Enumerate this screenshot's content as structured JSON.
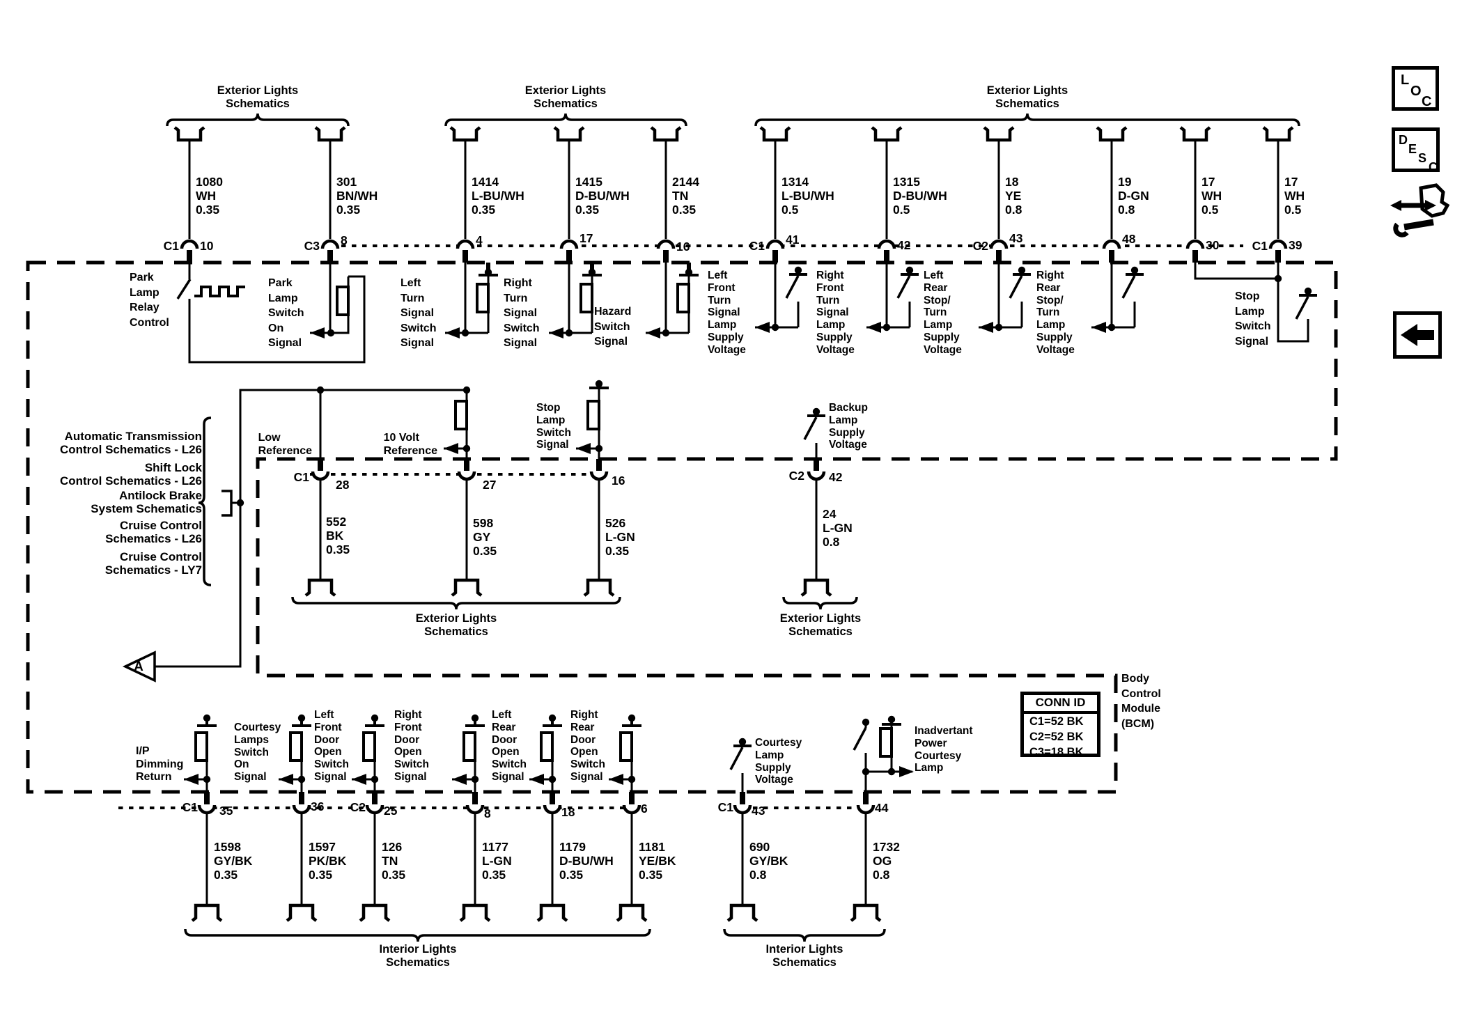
{
  "module": {
    "name_label": "Body\nControl\nModule\n(BCM)",
    "conn_id": {
      "title": "CONN ID",
      "rows": [
        "C1=52 BK",
        "C2=52 BK",
        "C3=18 BK"
      ]
    }
  },
  "braces_top": [
    {
      "label": "Exterior Lights\nSchematics"
    },
    {
      "label": "Exterior Lights\nSchematics"
    },
    {
      "label": "Exterior Lights\nSchematics"
    }
  ],
  "braces_mid": [
    {
      "label": "Exterior Lights\nSchematics"
    },
    {
      "label": "Exterior Lights\nSchematics"
    }
  ],
  "braces_bottom": [
    {
      "label": "Interior Lights\nSchematics"
    },
    {
      "label": "Interior Lights\nSchematics"
    }
  ],
  "top_wires": [
    {
      "circuit": "1080",
      "color": "WH",
      "size": "0.35",
      "conn": "C1",
      "pin": "10"
    },
    {
      "circuit": "301",
      "color": "BN/WH",
      "size": "0.35",
      "conn": "C3",
      "pin": "8"
    },
    {
      "circuit": "1414",
      "color": "L-BU/WH",
      "size": "0.35",
      "pin": "4"
    },
    {
      "circuit": "1415",
      "color": "D-BU/WH",
      "size": "0.35",
      "pin": "17"
    },
    {
      "circuit": "2144",
      "color": "TN",
      "size": "0.35",
      "pin": "16"
    },
    {
      "circuit": "1314",
      "color": "L-BU/WH",
      "size": "0.5",
      "conn": "C1",
      "pin": "41"
    },
    {
      "circuit": "1315",
      "color": "D-BU/WH",
      "size": "0.5",
      "pin": "42"
    },
    {
      "circuit": "18",
      "color": "YE",
      "size": "0.8",
      "conn": "C2",
      "pin": "43"
    },
    {
      "circuit": "19",
      "color": "D-GN",
      "size": "0.8",
      "pin": "48"
    },
    {
      "circuit": "17",
      "color": "WH",
      "size": "0.5",
      "pin": "30"
    },
    {
      "circuit": "17",
      "color": "WH",
      "size": "0.5",
      "conn": "C1",
      "pin": "39"
    }
  ],
  "top_signals": [
    {
      "label": "Park\nLamp\nRelay\nControl"
    },
    {
      "label": "Park\nLamp\nSwitch\nOn\nSignal"
    },
    {
      "label": "Left\nTurn\nSignal\nSwitch\nSignal"
    },
    {
      "label": "Right\nTurn\nSignal\nSwitch\nSignal"
    },
    {
      "label": "Hazard\nSwitch\nSignal"
    },
    {
      "label": "Left\nFront\nTurn\nSignal\nLamp\nSupply\nVoltage"
    },
    {
      "label": "Right\nFront\nTurn\nSignal\nLamp\nSupply\nVoltage"
    },
    {
      "label": "Left\nRear\nStop/\nTurn\nLamp\nSupply\nVoltage"
    },
    {
      "label": "Right\nRear\nStop/\nTurn\nLamp\nSupply\nVoltage"
    },
    {
      "label": "Stop\nLamp\nSwitch\nSignal"
    }
  ],
  "mid_wires": [
    {
      "circuit": "552",
      "color": "BK",
      "size": "0.35",
      "conn": "C1",
      "pin": "28"
    },
    {
      "circuit": "598",
      "color": "GY",
      "size": "0.35",
      "pin": "27"
    },
    {
      "circuit": "526",
      "color": "L-GN",
      "size": "0.35",
      "pin": "16"
    },
    {
      "circuit": "24",
      "color": "L-GN",
      "size": "0.8",
      "conn": "C2",
      "pin": "42"
    }
  ],
  "mid_signals": [
    {
      "label": "Low\nReference"
    },
    {
      "label": "10 Volt\nReference"
    },
    {
      "label": "Stop\nLamp\nSwitch\nSignal"
    },
    {
      "label": "Backup\nLamp\nSupply\nVoltage"
    }
  ],
  "references": [
    {
      "label": "Automatic Transmission\nControl Schematics - L26"
    },
    {
      "label": "Shift Lock\nControl Schematics - L26"
    },
    {
      "label": "Antilock Brake\nSystem Schematics"
    },
    {
      "label": "Cruise Control\nSchematics - L26"
    },
    {
      "label": "Cruise Control\nSchematics - LY7"
    }
  ],
  "ref_arrow": {
    "label": "A"
  },
  "bottom_wires": [
    {
      "circuit": "1598",
      "color": "GY/BK",
      "size": "0.35",
      "conn": "C1",
      "pin": "35"
    },
    {
      "circuit": "1597",
      "color": "PK/BK",
      "size": "0.35",
      "pin": "36"
    },
    {
      "circuit": "126",
      "color": "TN",
      "size": "0.35",
      "conn": "C2",
      "pin": "25"
    },
    {
      "circuit": "1177",
      "color": "L-GN",
      "size": "0.35",
      "pin": "8"
    },
    {
      "circuit": "1179",
      "color": "D-BU/WH",
      "size": "0.35",
      "pin": "18"
    },
    {
      "circuit": "1181",
      "color": "YE/BK",
      "size": "0.35",
      "pin": "6"
    },
    {
      "circuit": "690",
      "color": "GY/BK",
      "size": "0.8",
      "conn": "C1",
      "pin": "43"
    },
    {
      "circuit": "1732",
      "color": "OG",
      "size": "0.8",
      "pin": "44"
    }
  ],
  "bottom_signals": [
    {
      "label": "I/P\nDimming\nReturn"
    },
    {
      "label": "Courtesy\nLamps\nSwitch\nOn\nSignal"
    },
    {
      "label": "Left\nFront\nDoor\nOpen\nSwitch\nSignal"
    },
    {
      "label": "Right\nFront\nDoor\nOpen\nSwitch\nSignal"
    },
    {
      "label": "Left\nRear\nDoor\nOpen\nSwitch\nSignal"
    },
    {
      "label": "Right\nRear\nDoor\nOpen\nSwitch\nSignal"
    },
    {
      "label": "Courtesy\nLamp\nSupply\nVoltage"
    },
    {
      "label": "Inadvertant\nPower\nCourtesy\nLamp"
    }
  ],
  "sidebar": {
    "loc_letters": [
      "L",
      "O",
      "C"
    ],
    "desc_letters": [
      "D",
      "E",
      "S",
      "C"
    ]
  }
}
